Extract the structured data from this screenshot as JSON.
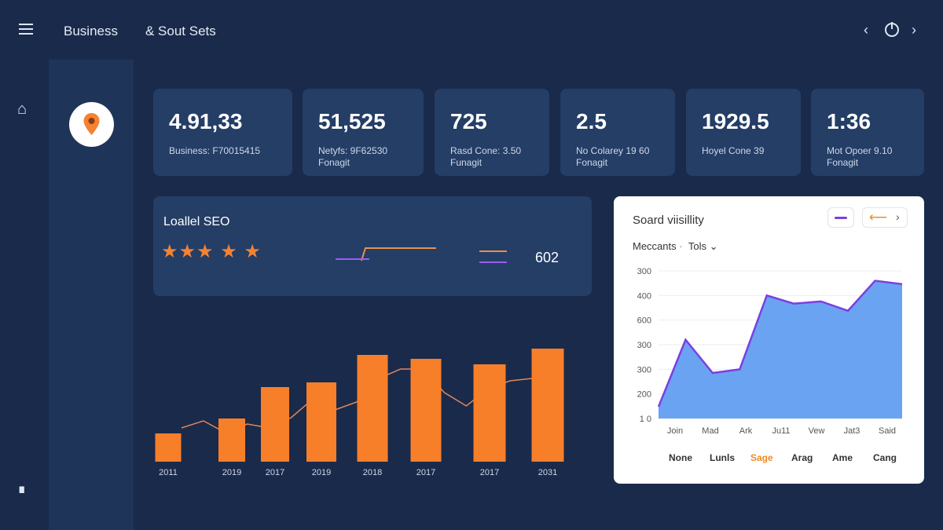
{
  "header": {
    "title": "Business",
    "subtitle": "& Sout Sets",
    "prev_icon": "chevron-left",
    "power_icon": "power",
    "next_icon": "chevron-right"
  },
  "sidebar": {
    "home_icon": "home",
    "bottom_icon": "book"
  },
  "logo": {
    "icon": "map-pin",
    "color": "#f58232"
  },
  "stats": [
    {
      "value": "4.91,33",
      "label1": "Business: F70015415",
      "label2": ""
    },
    {
      "value": "51,525",
      "label1": "Netyfs: 9F62530",
      "label2": "Fonagit"
    },
    {
      "value": "725",
      "label1": "Rasd Cone: 3.50",
      "label2": "Funagit"
    },
    {
      "value": "2.5",
      "label1": "No Colarey 19 60",
      "label2": "Fonagit"
    },
    {
      "value": "1929.5",
      "label1": "Hoyel Cone 39",
      "label2": ""
    },
    {
      "value": "1:36",
      "label1": "Mot Opoer 9.10",
      "label2": "Fonagit"
    }
  ],
  "seo": {
    "title": "Loallel SEO",
    "rating": 5,
    "stars": "★★★ ★ ★",
    "value": "602",
    "colors": {
      "orange": "#e8914a",
      "purple": "#9b5cf0"
    }
  },
  "chart_data": [
    {
      "type": "bar",
      "categories": [
        "2011",
        "2019",
        "2017",
        "2019",
        "2018",
        "2017",
        "2017",
        "2031"
      ],
      "values": [
        36,
        55,
        95,
        101,
        136,
        131,
        124,
        144
      ],
      "line": [
        43,
        52,
        37,
        48,
        43,
        56,
        80,
        66,
        76,
        106,
        118,
        118,
        88,
        71,
        93,
        103,
        106
      ],
      "ylim": [
        0,
        160
      ],
      "grid": false,
      "colors": {
        "bar": "#f77f2a",
        "line": "#e0875a"
      }
    },
    {
      "type": "area",
      "title": "Soard viisillity",
      "filter1": "Meccants",
      "filter2": "Tols",
      "x_labels": [
        "Join",
        "Mad",
        "Ark",
        "Ju11",
        "Vew",
        "Jat3",
        "Said"
      ],
      "y_tick_labels": [
        "1 0",
        "200",
        "300",
        "300",
        "600",
        "400",
        "300"
      ],
      "values": [
        148,
        420,
        285,
        300,
        600,
        567,
        576,
        538,
        660,
        646
      ],
      "ylim": [
        100,
        700
      ],
      "grid": true,
      "legend": [
        "None",
        "Lunls",
        "Sage",
        "Arag",
        "Ame",
        "Cang"
      ],
      "legend_highlight": "Sage",
      "colors": {
        "fill": "#6aa3f2",
        "line": "#7b3fe0",
        "highlight": "#f08a24"
      }
    }
  ]
}
